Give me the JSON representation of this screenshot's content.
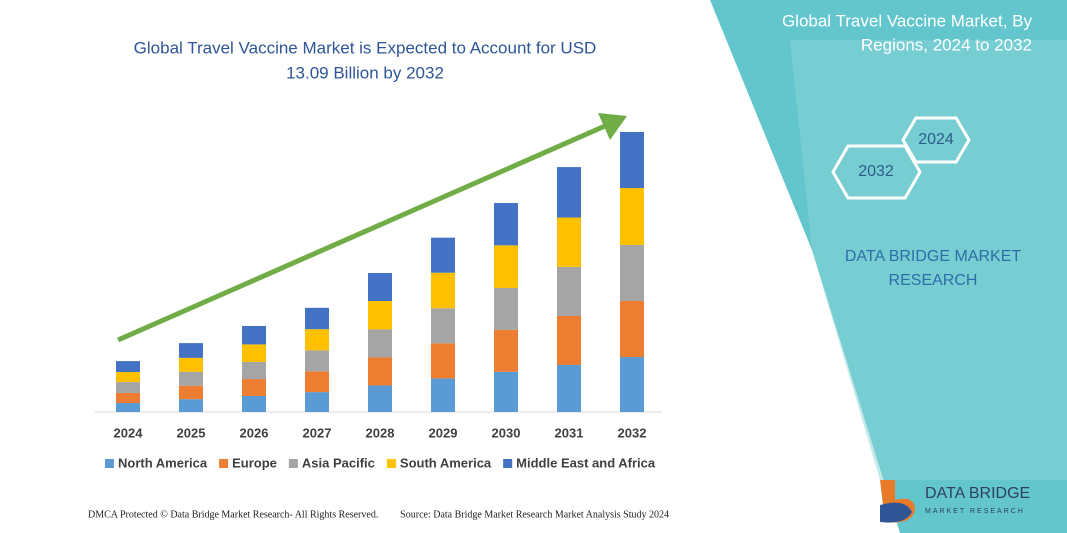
{
  "chart_data": {
    "type": "stacked_bar",
    "title": [
      "Global Travel Vaccine Market is Expected to Account for USD",
      "13.09 Billion by 2032"
    ],
    "categories": [
      "2024",
      "2025",
      "2026",
      "2027",
      "2028",
      "2029",
      "2030",
      "2031",
      "2032"
    ],
    "series": [
      {
        "name": "North America",
        "color": "#5b9bd5",
        "values": [
          0.42,
          0.6,
          0.75,
          0.93,
          1.24,
          1.57,
          1.88,
          2.2,
          2.57
        ]
      },
      {
        "name": "Europe",
        "color": "#ed7d31",
        "values": [
          0.47,
          0.63,
          0.79,
          0.97,
          1.31,
          1.64,
          1.96,
          2.29,
          2.62
        ]
      },
      {
        "name": "Asia Pacific",
        "color": "#a5a5a5",
        "values": [
          0.51,
          0.65,
          0.8,
          0.98,
          1.31,
          1.64,
          1.96,
          2.29,
          2.62
        ]
      },
      {
        "name": "South America",
        "color": "#ffc000",
        "values": [
          0.47,
          0.65,
          0.82,
          0.99,
          1.33,
          1.66,
          1.99,
          2.31,
          2.66
        ]
      },
      {
        "name": "Middle East and Africa",
        "color": "#4472c4",
        "values": [
          0.51,
          0.69,
          0.86,
          1.0,
          1.31,
          1.64,
          1.98,
          2.36,
          2.62
        ]
      }
    ],
    "ylim": [
      0,
      13.09
    ]
  },
  "panel": {
    "title": [
      "Global Travel Vaccine Market, By",
      "Regions, 2024 to 2032"
    ],
    "hexagons": [
      "2024",
      "2032"
    ],
    "brand": [
      "DATA BRIDGE MARKET",
      "RESEARCH"
    ]
  },
  "footer": {
    "left": "DMCA Protected © Data Bridge Market Research- All Rights Reserved.",
    "right": "Source: Data Bridge Market Research  Market Analysis Study 2024"
  },
  "logo": {
    "name": "DATA BRIDGE",
    "tagline": "MARKET RESEARCH"
  }
}
